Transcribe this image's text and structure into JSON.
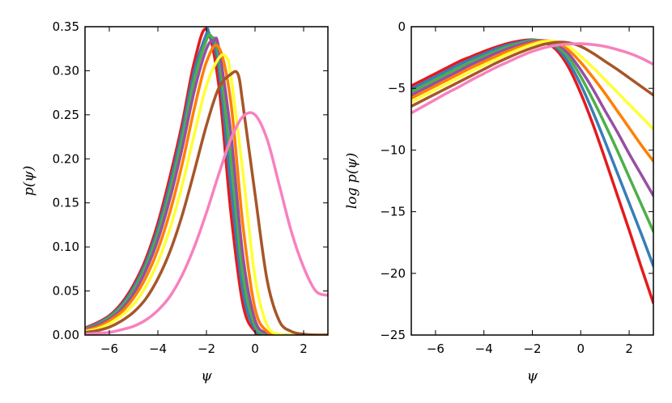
{
  "chart_data": [
    {
      "type": "line",
      "xlabel": "ψ",
      "ylabel": "p(ψ)",
      "xlim": [
        -7,
        3
      ],
      "ylim": [
        0,
        0.35
      ],
      "xticks": [
        -6,
        -4,
        -2,
        0,
        2
      ],
      "xtick_labels": [
        "−6",
        "−4",
        "−2",
        "0",
        "2"
      ],
      "yticks": [
        0.0,
        0.05,
        0.1,
        0.15,
        0.2,
        0.25,
        0.3,
        0.35
      ],
      "ytick_labels": [
        "0.00",
        "0.05",
        "0.10",
        "0.15",
        "0.20",
        "0.25",
        "0.30",
        "0.35"
      ],
      "grid": false,
      "legend": "none",
      "x": [
        -7,
        -6.5,
        -6,
        -5.5,
        -5,
        -4.5,
        -4,
        -3.5,
        -3,
        -2.5,
        -2,
        -1.5,
        -1,
        -0.5,
        0,
        0.5,
        1,
        1.5,
        2,
        2.5,
        3
      ],
      "series": [
        {
          "color": "#e41a1c",
          "peak": {
            "x": -2.0,
            "y": 0.347
          },
          "values": [
            0.008,
            0.014,
            0.022,
            0.036,
            0.057,
            0.086,
            0.127,
            0.18,
            0.24,
            0.31,
            0.347,
            0.285,
            0.14,
            0.035,
            0.004,
            0.0,
            0.0,
            0.0,
            0.0,
            0.0,
            0.0
          ]
        },
        {
          "color": "#377eb8",
          "peak": {
            "x": -1.9,
            "y": 0.343
          },
          "values": [
            0.007,
            0.013,
            0.021,
            0.034,
            0.054,
            0.082,
            0.121,
            0.172,
            0.232,
            0.3,
            0.342,
            0.305,
            0.17,
            0.05,
            0.007,
            0.0,
            0.0,
            0.0,
            0.0,
            0.0,
            0.0
          ]
        },
        {
          "color": "#4daf4a",
          "peak": {
            "x": -1.8,
            "y": 0.339
          },
          "values": [
            0.007,
            0.012,
            0.02,
            0.032,
            0.051,
            0.078,
            0.115,
            0.164,
            0.223,
            0.29,
            0.335,
            0.318,
            0.2,
            0.068,
            0.011,
            0.001,
            0.0,
            0.0,
            0.0,
            0.0,
            0.0
          ]
        },
        {
          "color": "#984ea3",
          "peak": {
            "x": -1.7,
            "y": 0.334
          },
          "values": [
            0.006,
            0.011,
            0.018,
            0.029,
            0.047,
            0.073,
            0.108,
            0.155,
            0.212,
            0.277,
            0.325,
            0.327,
            0.23,
            0.09,
            0.017,
            0.002,
            0.0,
            0.0,
            0.0,
            0.0,
            0.0
          ]
        },
        {
          "color": "#ff7f00",
          "peak": {
            "x": -1.5,
            "y": 0.327
          },
          "values": [
            0.005,
            0.009,
            0.016,
            0.026,
            0.042,
            0.065,
            0.097,
            0.14,
            0.194,
            0.257,
            0.31,
            0.327,
            0.265,
            0.125,
            0.03,
            0.004,
            0.0,
            0.0,
            0.0,
            0.0,
            0.0
          ]
        },
        {
          "color": "#ffff33",
          "peak": {
            "x": -1.2,
            "y": 0.316
          },
          "values": [
            0.004,
            0.007,
            0.013,
            0.022,
            0.035,
            0.055,
            0.083,
            0.121,
            0.17,
            0.228,
            0.283,
            0.314,
            0.295,
            0.185,
            0.065,
            0.011,
            0.001,
            0.0,
            0.0,
            0.0,
            0.0
          ]
        },
        {
          "color": "#a65628",
          "peak": {
            "x": -0.7,
            "y": 0.296
          },
          "values": [
            0.003,
            0.005,
            0.009,
            0.016,
            0.026,
            0.041,
            0.064,
            0.095,
            0.136,
            0.186,
            0.238,
            0.28,
            0.296,
            0.262,
            0.16,
            0.062,
            0.016,
            0.004,
            0.001,
            0.0,
            0.0
          ]
        },
        {
          "color": "#f781bf",
          "peak": {
            "x": 0.0,
            "y": 0.25
          },
          "values": [
            0.001,
            0.002,
            0.003,
            0.006,
            0.01,
            0.017,
            0.028,
            0.044,
            0.068,
            0.1,
            0.139,
            0.182,
            0.222,
            0.248,
            0.25,
            0.222,
            0.17,
            0.117,
            0.077,
            0.05,
            0.045
          ]
        }
      ]
    },
    {
      "type": "line",
      "xlabel": "ψ",
      "ylabel": "log p(ψ)",
      "xlim": [
        -7,
        3
      ],
      "ylim": [
        -25,
        0
      ],
      "xticks": [
        -6,
        -4,
        -2,
        0,
        2
      ],
      "xtick_labels": [
        "−6",
        "−4",
        "−2",
        "0",
        "2"
      ],
      "yticks": [
        -25,
        -20,
        -15,
        -10,
        -5,
        0
      ],
      "ytick_labels": [
        "−25",
        "−20",
        "−15",
        "−10",
        "−5",
        "0"
      ],
      "grid": false,
      "legend": "none",
      "x": [
        -7,
        -6.5,
        -6,
        -5.5,
        -5,
        -4.5,
        -4,
        -3.5,
        -3,
        -2.5,
        -2,
        -1.5,
        -1,
        -0.5,
        0,
        0.5,
        1,
        1.5,
        2,
        2.5,
        3
      ],
      "series": [
        {
          "color": "#e41a1c",
          "values": [
            -4.8,
            -4.3,
            -3.8,
            -3.3,
            -2.8,
            -2.4,
            -2.0,
            -1.65,
            -1.35,
            -1.15,
            -1.06,
            -1.25,
            -1.9,
            -3.3,
            -5.4,
            -7.9,
            -10.7,
            -13.6,
            -16.5,
            -19.5,
            -22.4
          ]
        },
        {
          "color": "#377eb8",
          "values": [
            -5.05,
            -4.55,
            -4.05,
            -3.55,
            -3.05,
            -2.6,
            -2.2,
            -1.8,
            -1.48,
            -1.25,
            -1.08,
            -1.2,
            -1.7,
            -2.9,
            -4.7,
            -6.9,
            -9.3,
            -11.8,
            -14.3,
            -16.8,
            -19.4
          ]
        },
        {
          "color": "#4daf4a",
          "values": [
            -5.3,
            -4.8,
            -4.3,
            -3.8,
            -3.3,
            -2.85,
            -2.4,
            -2.0,
            -1.62,
            -1.35,
            -1.12,
            -1.15,
            -1.55,
            -2.5,
            -4.05,
            -5.9,
            -7.9,
            -10.0,
            -12.2,
            -14.4,
            -16.6
          ]
        },
        {
          "color": "#984ea3",
          "values": [
            -5.55,
            -5.05,
            -4.55,
            -4.05,
            -3.55,
            -3.05,
            -2.6,
            -2.15,
            -1.78,
            -1.45,
            -1.2,
            -1.12,
            -1.4,
            -2.2,
            -3.5,
            -5.05,
            -6.8,
            -8.5,
            -10.3,
            -12.0,
            -13.7
          ]
        },
        {
          "color": "#ff7f00",
          "values": [
            -5.8,
            -5.3,
            -4.8,
            -4.3,
            -3.8,
            -3.3,
            -2.85,
            -2.4,
            -1.98,
            -1.62,
            -1.33,
            -1.14,
            -1.28,
            -1.9,
            -2.9,
            -4.1,
            -5.4,
            -6.8,
            -8.2,
            -9.6,
            -10.9
          ]
        },
        {
          "color": "#ffff33",
          "values": [
            -6.1,
            -5.6,
            -5.1,
            -4.6,
            -4.1,
            -3.6,
            -3.1,
            -2.65,
            -2.2,
            -1.8,
            -1.45,
            -1.2,
            -1.2,
            -1.6,
            -2.4,
            -3.3,
            -4.3,
            -5.3,
            -6.3,
            -7.3,
            -8.3
          ]
        },
        {
          "color": "#a65628",
          "values": [
            -6.45,
            -5.95,
            -5.45,
            -4.95,
            -4.45,
            -3.95,
            -3.45,
            -2.95,
            -2.5,
            -2.08,
            -1.72,
            -1.42,
            -1.26,
            -1.3,
            -1.6,
            -2.15,
            -2.8,
            -3.45,
            -4.15,
            -4.85,
            -5.55
          ]
        },
        {
          "color": "#f781bf",
          "values": [
            -7.0,
            -6.45,
            -5.9,
            -5.35,
            -4.85,
            -4.3,
            -3.8,
            -3.3,
            -2.85,
            -2.4,
            -2.0,
            -1.7,
            -1.5,
            -1.4,
            -1.38,
            -1.45,
            -1.6,
            -1.85,
            -2.15,
            -2.55,
            -3.05
          ]
        }
      ]
    }
  ]
}
